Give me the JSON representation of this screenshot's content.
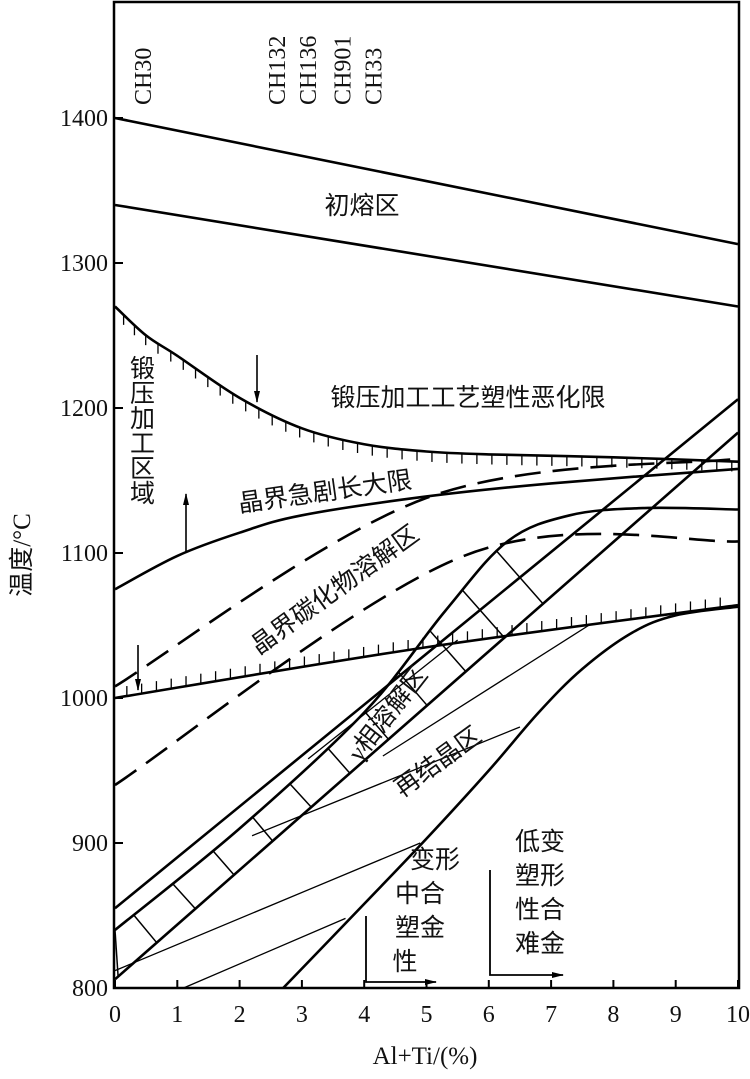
{
  "chart_data": {
    "type": "line",
    "xlabel": "Al+Ti/(%)",
    "ylabel": "温度/°C",
    "xlim": [
      0,
      10
    ],
    "ylim": [
      800,
      1480
    ],
    "xticks": [
      "0",
      "1",
      "2",
      "3",
      "4",
      "5",
      "6",
      "7",
      "8",
      "9",
      "10"
    ],
    "yticks": [
      "800",
      "900",
      "1000",
      "1100",
      "1200",
      "1300",
      "1400"
    ],
    "alloys": [
      {
        "name": "CH30",
        "x": 0.45
      },
      {
        "name": "CH132",
        "x": 2.6
      },
      {
        "name": "CH136",
        "x": 3.1
      },
      {
        "name": "CH901",
        "x": 3.65
      },
      {
        "name": "CH33",
        "x": 4.15
      }
    ],
    "curves": [
      {
        "id": "incipient-melting-upper",
        "style": "solid",
        "points": [
          [
            0,
            1400
          ],
          [
            10,
            1313
          ]
        ]
      },
      {
        "id": "incipient-melting-lower",
        "style": "solid",
        "points": [
          [
            0,
            1340
          ],
          [
            10,
            1270
          ]
        ]
      },
      {
        "id": "forging-plasticity-limit",
        "style": "hatched-down",
        "points": [
          [
            0,
            1270
          ],
          [
            0.5,
            1250
          ],
          [
            1,
            1236
          ],
          [
            2,
            1207
          ],
          [
            3,
            1186
          ],
          [
            4,
            1175
          ],
          [
            5,
            1170
          ],
          [
            6,
            1168
          ],
          [
            8,
            1166
          ],
          [
            10,
            1163
          ]
        ]
      },
      {
        "id": "grain-growth-limit",
        "style": "solid",
        "points": [
          [
            0,
            1075
          ],
          [
            1,
            1098
          ],
          [
            2,
            1114
          ],
          [
            3,
            1126
          ],
          [
            5,
            1139
          ],
          [
            7,
            1148
          ],
          [
            10,
            1158
          ]
        ]
      },
      {
        "id": "carbide-dissolution-upper",
        "style": "dashed",
        "points": [
          [
            0,
            1008
          ],
          [
            5,
            1138
          ],
          [
            10,
            1165
          ]
        ]
      },
      {
        "id": "carbide-dissolution-lower",
        "style": "dashed",
        "points": [
          [
            0,
            940
          ],
          [
            5.6,
            1098
          ],
          [
            10,
            1108
          ]
        ]
      },
      {
        "id": "carbide-line-1000",
        "style": "hatched-up",
        "points": [
          [
            0,
            1000
          ],
          [
            5,
            1035
          ],
          [
            10,
            1064
          ]
        ]
      },
      {
        "id": "gamma-prime-upper",
        "style": "solid",
        "points": [
          [
            0,
            855
          ],
          [
            10,
            1206
          ]
        ]
      },
      {
        "id": "gamma-prime-lower",
        "style": "solid",
        "points": [
          [
            0,
            806
          ],
          [
            10,
            1183
          ]
        ]
      },
      {
        "id": "gamma-prime-curve",
        "style": "solid",
        "points": [
          [
            0,
            840
          ],
          [
            2,
            910
          ],
          [
            4,
            990
          ],
          [
            5.3,
            1060
          ],
          [
            6.3,
            1108
          ],
          [
            7.3,
            1126
          ],
          [
            8.5,
            1131
          ],
          [
            10,
            1130
          ]
        ]
      },
      {
        "id": "recrystallization-boundary",
        "style": "solid",
        "points": [
          [
            2.7,
            800
          ],
          [
            4,
            858
          ],
          [
            5,
            903
          ],
          [
            6,
            950
          ],
          [
            6.8,
            990
          ],
          [
            7.5,
            1020
          ],
          [
            8.3,
            1045
          ],
          [
            9,
            1057
          ],
          [
            10,
            1063
          ]
        ]
      },
      {
        "id": "recryst-thin-1",
        "style": "thin",
        "points": [
          [
            0,
            812
          ],
          [
            4.9,
            900
          ]
        ]
      },
      {
        "id": "recryst-thin-2",
        "style": "thin",
        "points": [
          [
            1.1,
            800
          ],
          [
            3.7,
            848
          ]
        ]
      },
      {
        "id": "recryst-thin-3",
        "style": "thin",
        "points": [
          [
            2.2,
            905
          ],
          [
            6.5,
            980
          ]
        ]
      },
      {
        "id": "recryst-thin-4",
        "style": "thin",
        "points": [
          [
            4.3,
            960
          ],
          [
            7.6,
            1050
          ]
        ]
      },
      {
        "id": "recryst-thin-5",
        "style": "thin",
        "points": [
          [
            3.1,
            958
          ],
          [
            5.5,
            1040
          ]
        ]
      }
    ],
    "regions": {
      "incipient_melting": "初熔区",
      "forging_limit": "锻压加工工艺塑性恶化限",
      "forging_zone": "锻压加工区域",
      "grain_growth": "晶界急剧长大限",
      "carbide_dissolution": "晶界碳化物溶解区",
      "gamma_prime": "γ相溶解区",
      "recrystallization": "再结晶区",
      "medium_plasticity": [
        "变形",
        "中合",
        "塑金",
        "性"
      ],
      "low_plasticity": [
        "低变",
        "塑形",
        "性合",
        "难金"
      ]
    },
    "grid": false,
    "legend": "none"
  }
}
